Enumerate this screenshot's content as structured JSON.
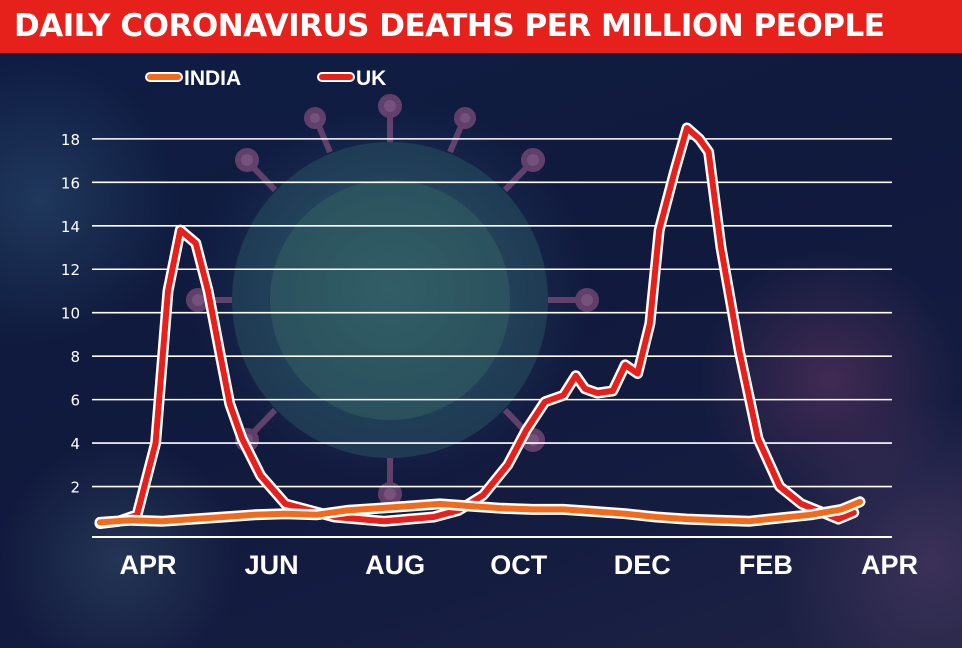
{
  "header": {
    "title": "DAILY CORONAVIRUS DEATHS PER MILLION PEOPLE"
  },
  "chart_data": {
    "type": "line",
    "title": "DAILY CORONAVIRUS DEATHS PER MILLION PEOPLE",
    "xlabel": "",
    "ylabel": "",
    "x_tick_labels": [
      "APR",
      "JUN",
      "AUG",
      "OCT",
      "DEC",
      "FEB",
      "APR"
    ],
    "y_ticks": [
      2,
      4,
      6,
      8,
      10,
      12,
      14,
      16,
      18
    ],
    "y_tick_labels": [
      "2",
      "4",
      "6",
      "8",
      "10",
      "12",
      "14",
      "16",
      "18"
    ],
    "ylim": [
      0,
      18.5
    ],
    "xlim": [
      0,
      12.3
    ],
    "x_unit_note": "months since start of April",
    "grid": true,
    "legend_position": "top-left",
    "series": [
      {
        "name": "INDIA",
        "color": "#f26a1b",
        "x": [
          0,
          0.5,
          1,
          1.5,
          2,
          2.5,
          3,
          3.5,
          4,
          4.5,
          5,
          5.5,
          6,
          6.5,
          7,
          7.5,
          8,
          8.5,
          9,
          9.5,
          10,
          10.5,
          11,
          11.5,
          12,
          12.3
        ],
        "y": [
          0.35,
          0.45,
          0.4,
          0.5,
          0.6,
          0.7,
          0.75,
          0.7,
          0.9,
          1.0,
          1.1,
          1.2,
          1.1,
          1.0,
          0.95,
          0.95,
          0.85,
          0.75,
          0.6,
          0.5,
          0.45,
          0.4,
          0.55,
          0.7,
          0.95,
          1.3
        ]
      },
      {
        "name": "UK",
        "color": "#e6211c",
        "x": [
          0,
          0.3,
          0.6,
          0.9,
          1.1,
          1.3,
          1.55,
          1.75,
          1.95,
          2.1,
          2.3,
          2.6,
          3.0,
          3.4,
          3.8,
          4.2,
          4.6,
          5.0,
          5.4,
          5.8,
          6.2,
          6.6,
          6.9,
          7.2,
          7.5,
          7.7,
          7.85,
          8.05,
          8.3,
          8.5,
          8.7,
          8.9,
          9.05,
          9.3,
          9.5,
          9.7,
          9.85,
          10.05,
          10.35,
          10.65,
          11.0,
          11.35,
          11.7,
          11.95,
          12.2
        ],
        "y": [
          0.3,
          0.4,
          0.7,
          4.0,
          11.0,
          13.8,
          13.2,
          11.0,
          8.0,
          5.8,
          4.2,
          2.5,
          1.2,
          0.9,
          0.6,
          0.5,
          0.4,
          0.5,
          0.6,
          0.9,
          1.6,
          3.0,
          4.6,
          5.9,
          6.2,
          7.1,
          6.5,
          6.3,
          6.4,
          7.6,
          7.2,
          9.5,
          13.8,
          16.5,
          18.5,
          18.0,
          17.4,
          13.0,
          8.2,
          4.2,
          2.0,
          1.2,
          0.8,
          0.5,
          0.8
        ]
      }
    ]
  }
}
